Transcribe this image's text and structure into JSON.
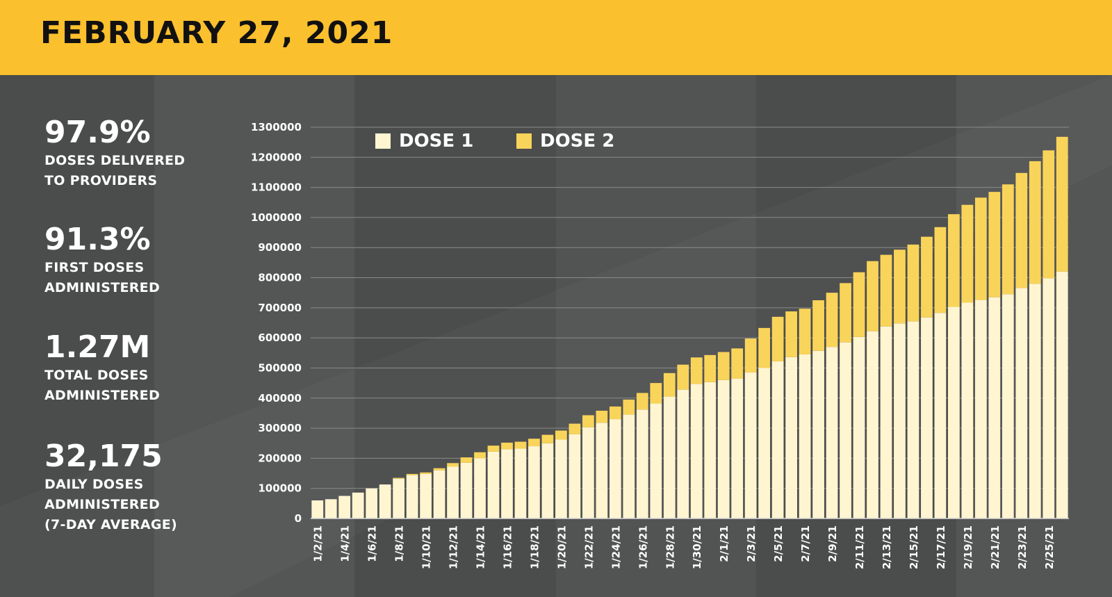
{
  "header": {
    "title": "FEBRUARY 27, 2021"
  },
  "stats": [
    {
      "value": "97.9%",
      "label": "DOSES DELIVERED\nTO PROVIDERS"
    },
    {
      "value": "91.3%",
      "label": "FIRST DOSES\nADMINISTERED"
    },
    {
      "value": "1.27M",
      "label": "TOTAL DOSES\nADMINISTERED"
    },
    {
      "value": "32,175",
      "label": "DAILY DOSES\nADMINISTERED\n(7-DAY AVERAGE)"
    }
  ],
  "colors": {
    "accent": "#fbc02d",
    "dose1": "#fff5d1",
    "dose2": "#f9d45a",
    "background": "#4b4c4c"
  },
  "chart_data": {
    "type": "bar",
    "stacked": true,
    "categories": [
      "1/2/21",
      "1/3/21",
      "1/4/21",
      "1/5/21",
      "1/6/21",
      "1/7/21",
      "1/8/21",
      "1/9/21",
      "1/10/21",
      "1/11/21",
      "1/12/21",
      "1/13/21",
      "1/14/21",
      "1/15/21",
      "1/16/21",
      "1/17/21",
      "1/18/21",
      "1/19/21",
      "1/20/21",
      "1/21/21",
      "1/22/21",
      "1/23/21",
      "1/24/21",
      "1/25/21",
      "1/26/21",
      "1/27/21",
      "1/28/21",
      "1/29/21",
      "1/30/21",
      "1/31/21",
      "2/1/21",
      "2/2/21",
      "2/3/21",
      "2/4/21",
      "2/5/21",
      "2/6/21",
      "2/7/21",
      "2/8/21",
      "2/9/21",
      "2/10/21",
      "2/11/21",
      "2/12/21",
      "2/13/21",
      "2/14/21",
      "2/15/21",
      "2/16/21",
      "2/17/21",
      "2/18/21",
      "2/19/21",
      "2/20/21",
      "2/21/21",
      "2/22/21",
      "2/23/21",
      "2/24/21",
      "2/25/21",
      "2/26/21"
    ],
    "tick_labels": [
      "1/2/21",
      "1/4/21",
      "1/6/21",
      "1/8/21",
      "1/10/21",
      "1/12/21",
      "1/14/21",
      "1/16/21",
      "1/18/21",
      "1/20/21",
      "1/22/21",
      "1/24/21",
      "1/26/21",
      "1/28/21",
      "1/30/21",
      "2/1/21",
      "2/3/21",
      "2/5/21",
      "2/7/21",
      "2/9/21",
      "2/11/21",
      "2/13/21",
      "2/15/21",
      "2/17/21",
      "2/19/21",
      "2/21/21",
      "2/23/21",
      "2/25/21"
    ],
    "series": [
      {
        "name": "DOSE 1",
        "values": [
          60000,
          64000,
          75000,
          86000,
          100000,
          113000,
          132000,
          144000,
          148000,
          160000,
          172000,
          185000,
          200000,
          222000,
          230000,
          232000,
          240000,
          250000,
          262000,
          280000,
          303000,
          318000,
          330000,
          345000,
          362000,
          382000,
          405000,
          428000,
          447000,
          453000,
          460000,
          465000,
          485000,
          500000,
          522000,
          536000,
          545000,
          557000,
          570000,
          585000,
          603000,
          622000,
          638000,
          648000,
          655000,
          668000,
          683000,
          703000,
          717000,
          726000,
          735000,
          745000,
          766000,
          780000,
          798000,
          820000
        ]
      },
      {
        "name": "DOSE 2",
        "values": [
          0,
          0,
          0,
          0,
          0,
          0,
          3000,
          4000,
          5000,
          7000,
          12000,
          18000,
          20000,
          20000,
          22000,
          23000,
          25000,
          28000,
          30000,
          35000,
          40000,
          40000,
          42000,
          50000,
          55000,
          68000,
          78000,
          83000,
          88000,
          90000,
          93000,
          100000,
          113000,
          133000,
          148000,
          152000,
          152000,
          168000,
          180000,
          197000,
          215000,
          233000,
          238000,
          245000,
          255000,
          268000,
          285000,
          308000,
          325000,
          340000,
          350000,
          365000,
          382000,
          407000,
          425000,
          448000
        ]
      }
    ],
    "ylim": [
      0,
      1300000
    ],
    "yticks": [
      "0",
      "100000",
      "200000",
      "300000",
      "400000",
      "500000",
      "600000",
      "700000",
      "800000",
      "900000",
      "1000000",
      "1100000",
      "1200000",
      "1300000"
    ],
    "xlabel": "",
    "ylabel": "",
    "grid": true,
    "legend_position": "top-left"
  }
}
